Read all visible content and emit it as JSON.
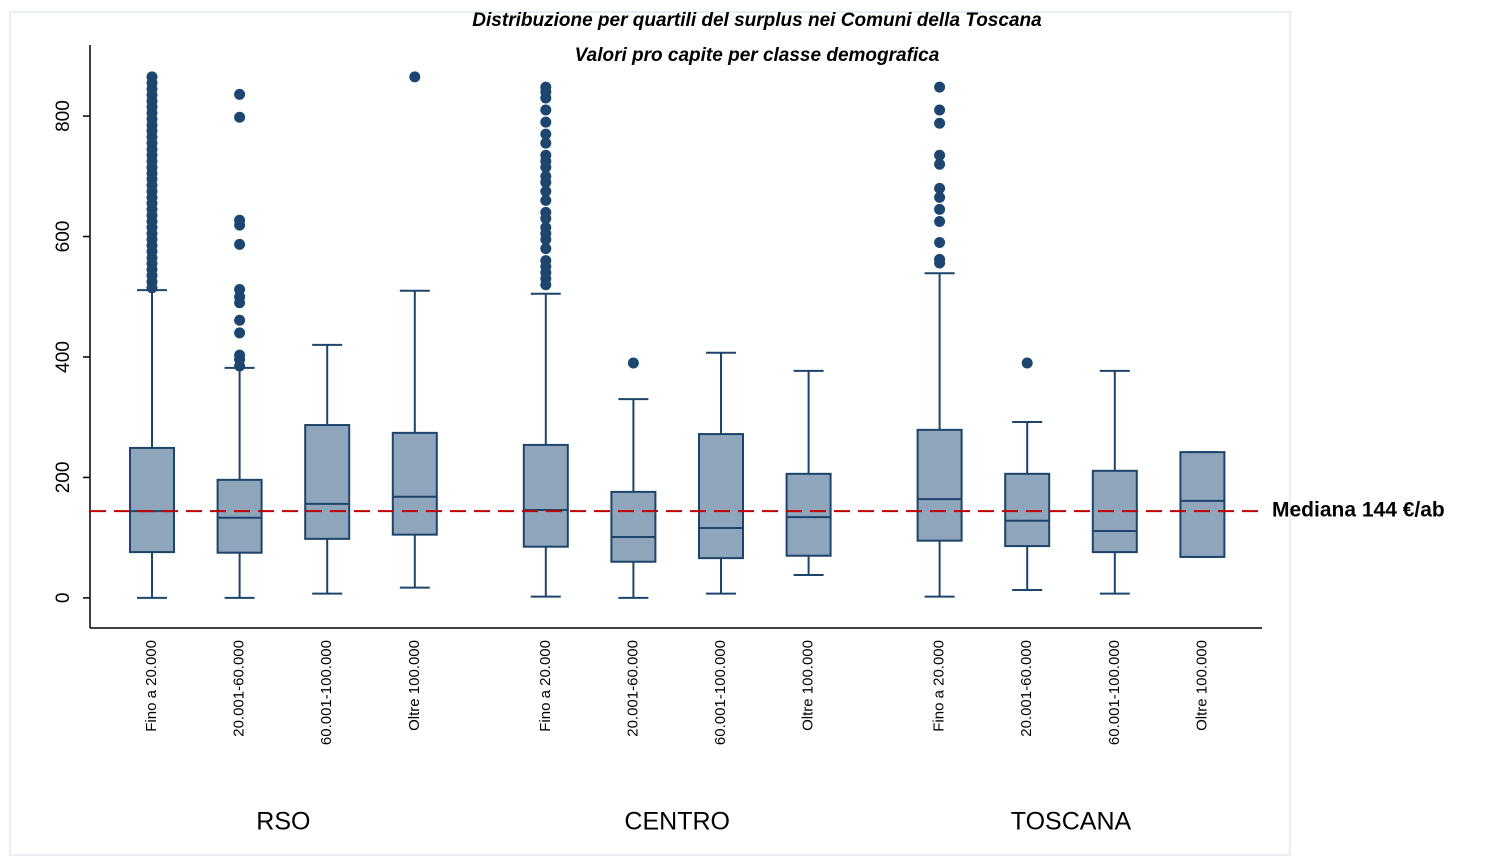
{
  "chart_data": {
    "type": "box",
    "title": "Distribuzione per quartili del surplus nei Comuni della Toscana",
    "subtitle": "Valori pro capite per classe demografica",
    "ylim": [
      -50,
      918
    ],
    "yticks": [
      0,
      200,
      400,
      600,
      800
    ],
    "box_color": "#8ea5bb",
    "line_color": "#1d446b",
    "outlier_color": "#1c466f",
    "reference_line": {
      "value": 144,
      "label": "Mediana 144 €/ab",
      "color": "#c00000"
    },
    "groups": [
      {
        "name": "RSO",
        "boxes": [
          {
            "category": "Fino a 20.000",
            "low": 0,
            "q1": 76,
            "median": 144,
            "q3": 249,
            "high": 511,
            "outliers": [
              515,
              525,
              535,
              545,
              555,
              565,
              575,
              585,
              595,
              605,
              615,
              625,
              635,
              645,
              655,
              665,
              675,
              685,
              695,
              705,
              715,
              725,
              735,
              745,
              755,
              765,
              775,
              785,
              795,
              805,
              815,
              825,
              835,
              845,
              855,
              865
            ]
          },
          {
            "category": "20.001-60.000",
            "low": 0,
            "q1": 75,
            "median": 133,
            "q3": 196,
            "high": 382,
            "outliers": [
              836,
              798,
              627,
              619,
              587,
              512,
              500,
              490,
              461,
              440,
              403,
              396,
              385
            ]
          },
          {
            "category": "60.001-100.000",
            "low": 7,
            "q1": 98,
            "median": 156,
            "q3": 287,
            "high": 420,
            "outliers": []
          },
          {
            "category": "Oltre 100.000",
            "low": 17,
            "q1": 105,
            "median": 168,
            "q3": 274,
            "high": 510,
            "outliers": [
              865
            ]
          }
        ]
      },
      {
        "name": "CENTRO",
        "boxes": [
          {
            "category": "Fino a 20.000",
            "low": 2,
            "q1": 85,
            "median": 146,
            "q3": 254,
            "high": 505,
            "outliers": [
              848,
              840,
              830,
              810,
              790,
              770,
              755,
              735,
              725,
              715,
              700,
              690,
              675,
              660,
              640,
              630,
              615,
              605,
              595,
              580,
              560,
              550,
              540,
              530,
              520
            ]
          },
          {
            "category": "20.001-60.000",
            "low": 0,
            "q1": 60,
            "median": 101,
            "q3": 176,
            "high": 330,
            "outliers": [
              390
            ]
          },
          {
            "category": "60.001-100.000",
            "low": 7,
            "q1": 66,
            "median": 116,
            "q3": 272,
            "high": 407,
            "outliers": []
          },
          {
            "category": "Oltre 100.000",
            "low": 38,
            "q1": 70,
            "median": 134,
            "q3": 206,
            "high": 377,
            "outliers": []
          }
        ]
      },
      {
        "name": "TOSCANA",
        "boxes": [
          {
            "category": "Fino a 20.000",
            "low": 2,
            "q1": 95,
            "median": 164,
            "q3": 279,
            "high": 539,
            "outliers": [
              848,
              810,
              788,
              735,
              720,
              680,
              665,
              645,
              625,
              590,
              562,
              556
            ]
          },
          {
            "category": "20.001-60.000",
            "low": 13,
            "q1": 86,
            "median": 128,
            "q3": 206,
            "high": 292,
            "outliers": [
              390
            ]
          },
          {
            "category": "60.001-100.000",
            "low": 7,
            "q1": 76,
            "median": 111,
            "q3": 211,
            "high": 377,
            "outliers": []
          },
          {
            "category": "Oltre 100.000",
            "low": 68,
            "q1": 68,
            "median": 161,
            "q3": 242,
            "high": 242,
            "outliers": []
          }
        ]
      }
    ]
  }
}
